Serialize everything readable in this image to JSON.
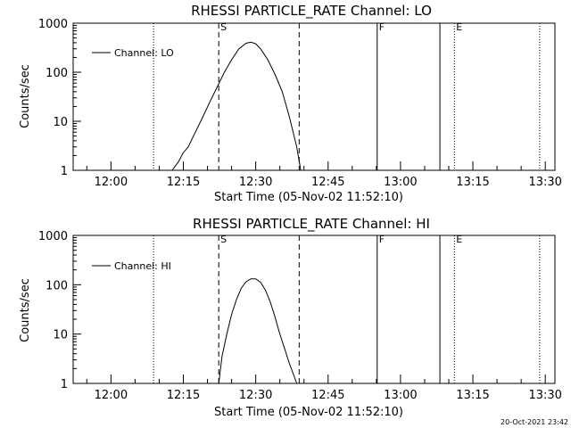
{
  "footer": {
    "timestamp": "20-Oct-2021 23:42"
  },
  "chart_data": [
    {
      "type": "line",
      "title": "RHESSI PARTICLE_RATE Channel: LO",
      "xlabel": "Start Time (05-Nov-02 11:52:10)",
      "ylabel": "Counts/sec",
      "yscale": "log",
      "ylim": [
        1,
        1000
      ],
      "xlim": [
        "11:52:10",
        "13:32:00"
      ],
      "x_ticks": [
        "12:00",
        "12:15",
        "12:30",
        "12:45",
        "13:00",
        "13:15",
        "13:30"
      ],
      "y_ticks": [
        "1",
        "10",
        "100",
        "1000"
      ],
      "legend": {
        "label": "Channel: LO",
        "position": "top-left"
      },
      "series": [
        {
          "name": "Channel: LO",
          "x": [
            "12:12:40",
            "12:14:00",
            "12:15:00",
            "12:16:00",
            "12:17:30",
            "12:19:00",
            "12:20:30",
            "12:22:00",
            "12:23:30",
            "12:25:00",
            "12:26:30",
            "12:28:00",
            "12:29:00",
            "12:30:00",
            "12:31:00",
            "12:32:30",
            "12:34:00",
            "12:35:30",
            "12:37:00",
            "12:38:30",
            "12:39:20"
          ],
          "y": [
            1.0,
            1.5,
            2.3,
            3.0,
            6.0,
            12,
            25,
            50,
            100,
            180,
            300,
            390,
            410,
            380,
            300,
            180,
            90,
            40,
            12,
            3.0,
            1.0
          ]
        }
      ],
      "vertical_lines": [
        {
          "time": "12:08:50",
          "style": "dotted"
        },
        {
          "time": "12:22:20",
          "style": "dashed",
          "label": "S"
        },
        {
          "time": "12:39:00",
          "style": "dashed"
        },
        {
          "time": "12:55:10",
          "style": "solid",
          "label": "F"
        },
        {
          "time": "13:08:10",
          "style": "solid"
        },
        {
          "time": "13:11:10",
          "style": "dotted",
          "label": "E"
        },
        {
          "time": "13:28:50",
          "style": "dotted"
        }
      ]
    },
    {
      "type": "line",
      "title": "RHESSI PARTICLE_RATE Channel: HI",
      "xlabel": "Start Time (05-Nov-02 11:52:10)",
      "ylabel": "Counts/sec",
      "yscale": "log",
      "ylim": [
        1,
        1000
      ],
      "xlim": [
        "11:52:10",
        "13:32:00"
      ],
      "x_ticks": [
        "12:00",
        "12:15",
        "12:30",
        "12:45",
        "13:00",
        "13:15",
        "13:30"
      ],
      "y_ticks": [
        "1",
        "10",
        "100",
        "1000"
      ],
      "legend": {
        "label": "Channel: HI",
        "position": "top-left"
      },
      "series": [
        {
          "name": "Channel: HI",
          "x": [
            "12:22:20",
            "12:23:00",
            "12:24:00",
            "12:25:00",
            "12:26:00",
            "12:27:00",
            "12:28:00",
            "12:29:00",
            "12:30:00",
            "12:31:00",
            "12:32:00",
            "12:33:00",
            "12:34:00",
            "12:35:00",
            "12:36:00",
            "12:37:00",
            "12:38:30"
          ],
          "y": [
            1.0,
            3.5,
            10,
            25,
            50,
            85,
            115,
            132,
            132,
            112,
            78,
            45,
            22,
            10,
            5.0,
            2.5,
            1.0
          ]
        }
      ],
      "vertical_lines": [
        {
          "time": "12:08:50",
          "style": "dotted"
        },
        {
          "time": "12:22:20",
          "style": "dashed",
          "label": "S"
        },
        {
          "time": "12:39:00",
          "style": "dashed"
        },
        {
          "time": "12:55:10",
          "style": "solid",
          "label": "F"
        },
        {
          "time": "13:08:10",
          "style": "solid"
        },
        {
          "time": "13:11:10",
          "style": "dotted",
          "label": "E"
        },
        {
          "time": "13:28:50",
          "style": "dotted"
        }
      ]
    }
  ]
}
